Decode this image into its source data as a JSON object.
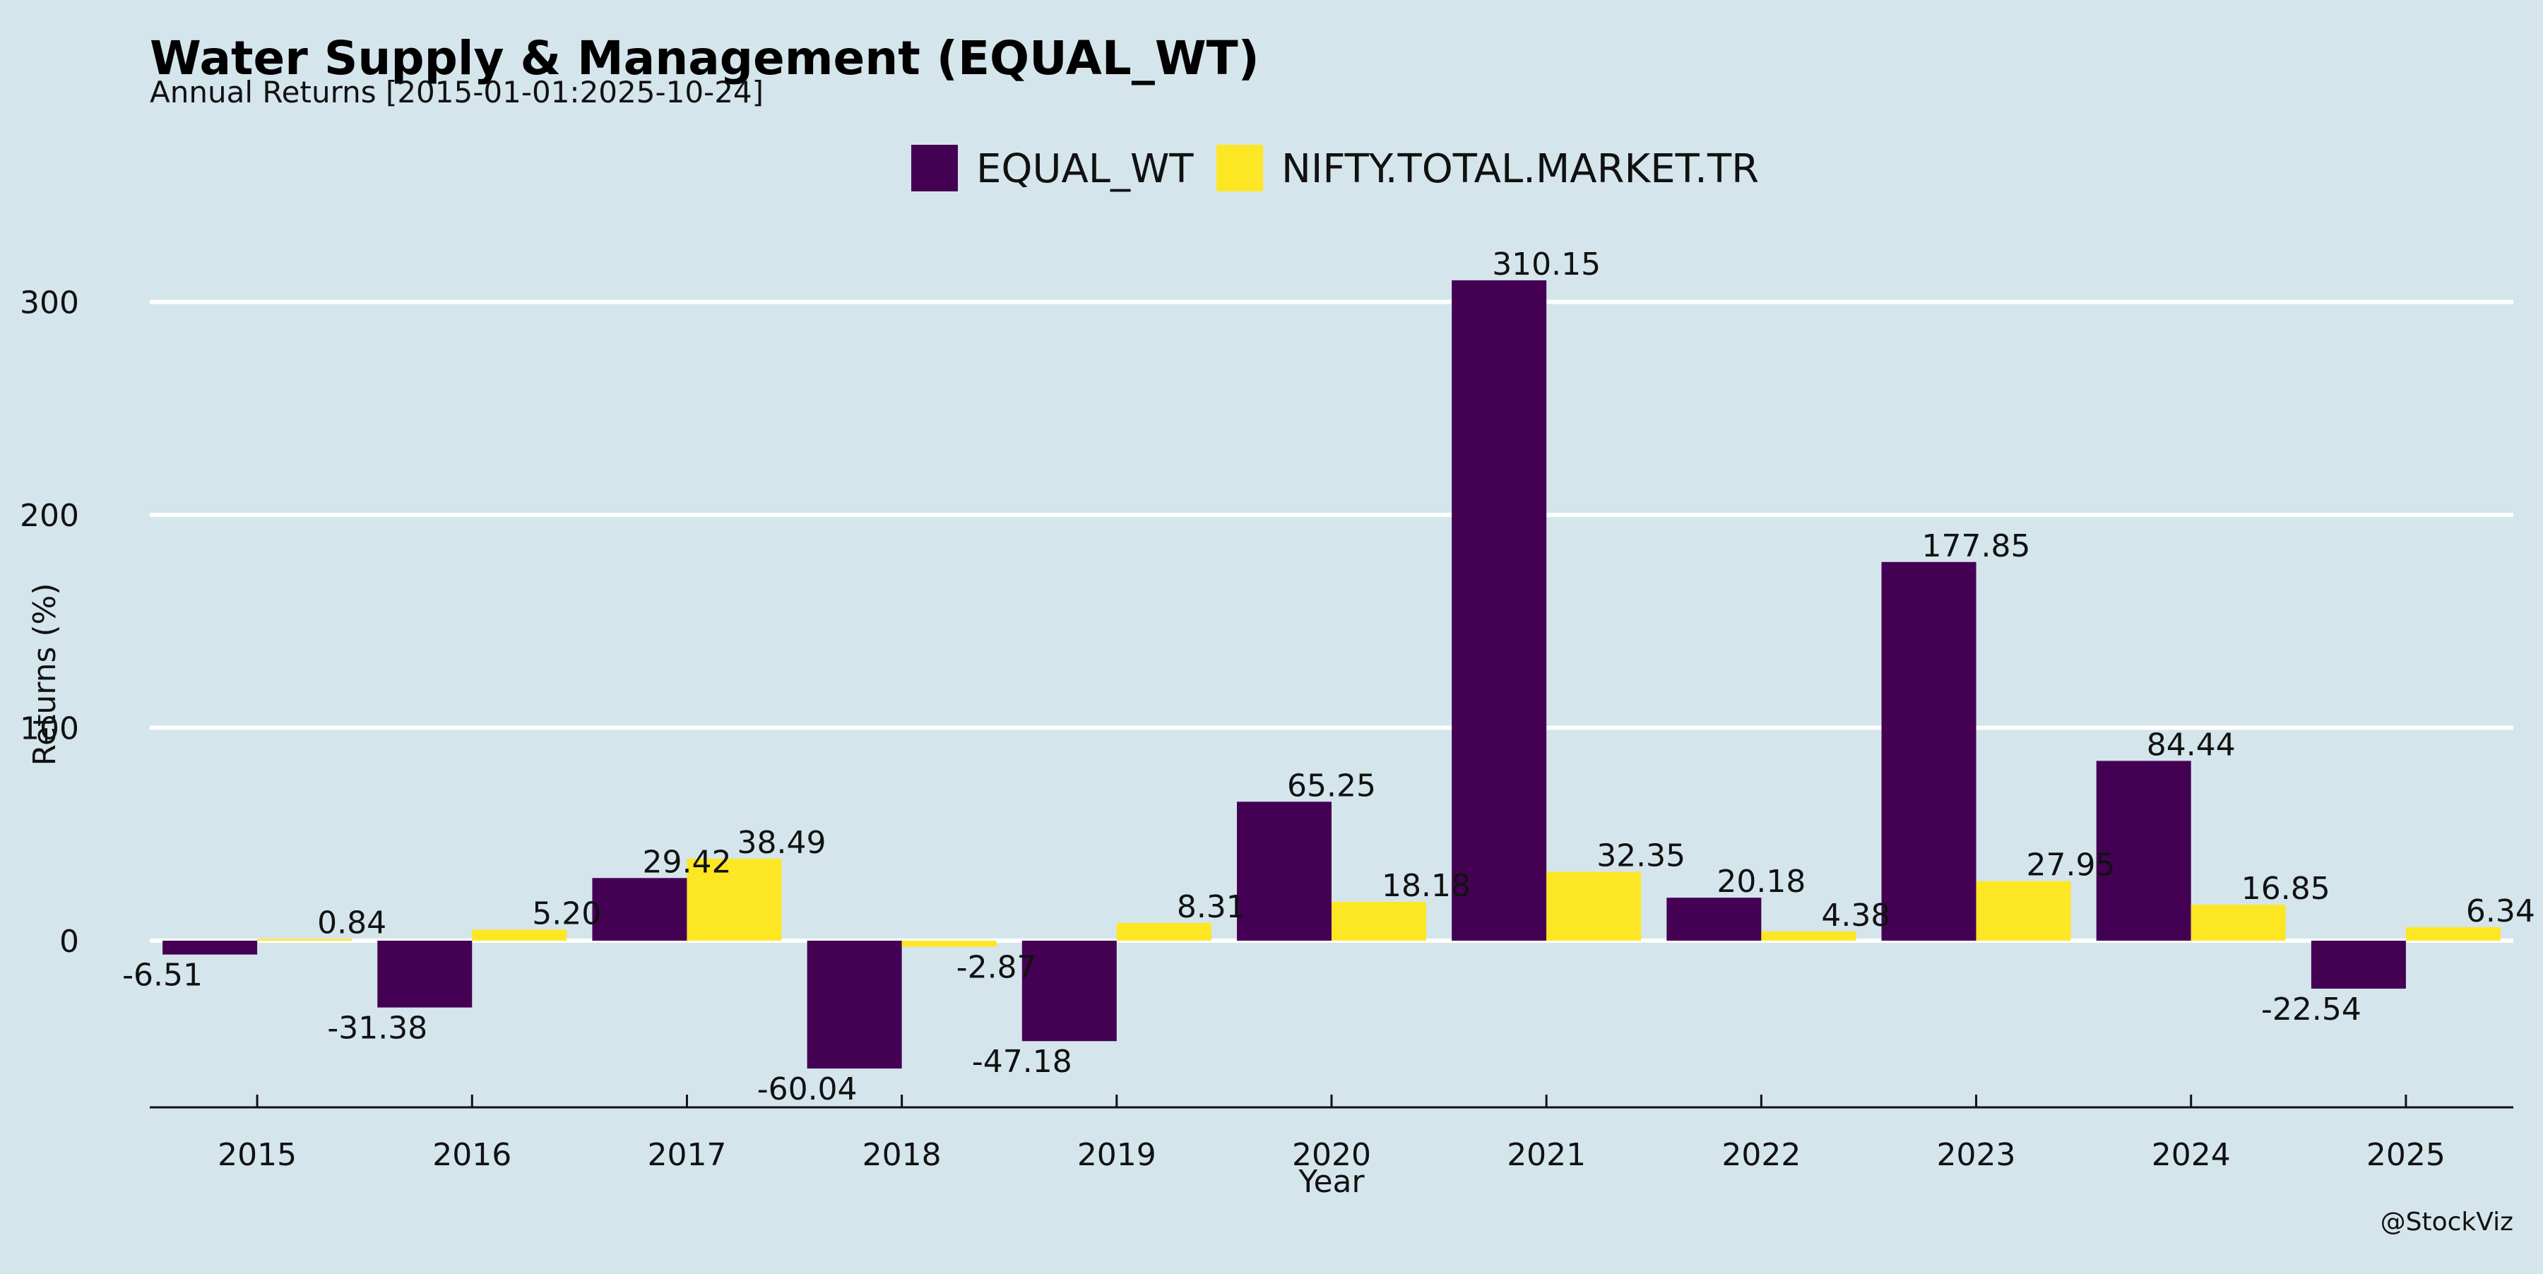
{
  "header": {
    "title": "Water Supply & Management (EQUAL_WT)",
    "subtitle": "Annual Returns [2015-01-01:2025-10-24]"
  },
  "caption": "@StockViz",
  "colors": {
    "background": "#d5e5ec",
    "EQUAL_WT": "#440154",
    "NIFTY.TOTAL.MARKET.TR": "#fde725",
    "grid": "#ffffff"
  },
  "chart_data": {
    "type": "bar",
    "title": "Water Supply & Management (EQUAL_WT)",
    "subtitle": "Annual Returns [2015-01-01:2025-10-24]",
    "xlabel": "Year",
    "ylabel": "Returns (%)",
    "ylim": [
      -78,
      330
    ],
    "yticks": [
      0,
      100,
      200,
      300
    ],
    "grid": "horizontal",
    "legend_position": "top-center",
    "categories": [
      "2015",
      "2016",
      "2017",
      "2018",
      "2019",
      "2020",
      "2021",
      "2022",
      "2023",
      "2024",
      "2025"
    ],
    "series": [
      {
        "name": "EQUAL_WT",
        "color": "#440154",
        "values": [
          -6.51,
          -31.38,
          29.42,
          -60.04,
          -47.18,
          65.25,
          310.15,
          20.18,
          177.85,
          84.44,
          -22.54
        ]
      },
      {
        "name": "NIFTY.TOTAL.MARKET.TR",
        "color": "#fde725",
        "values": [
          0.84,
          5.2,
          38.49,
          -2.87,
          8.31,
          18.18,
          32.35,
          4.38,
          27.95,
          16.85,
          6.34
        ]
      }
    ]
  }
}
